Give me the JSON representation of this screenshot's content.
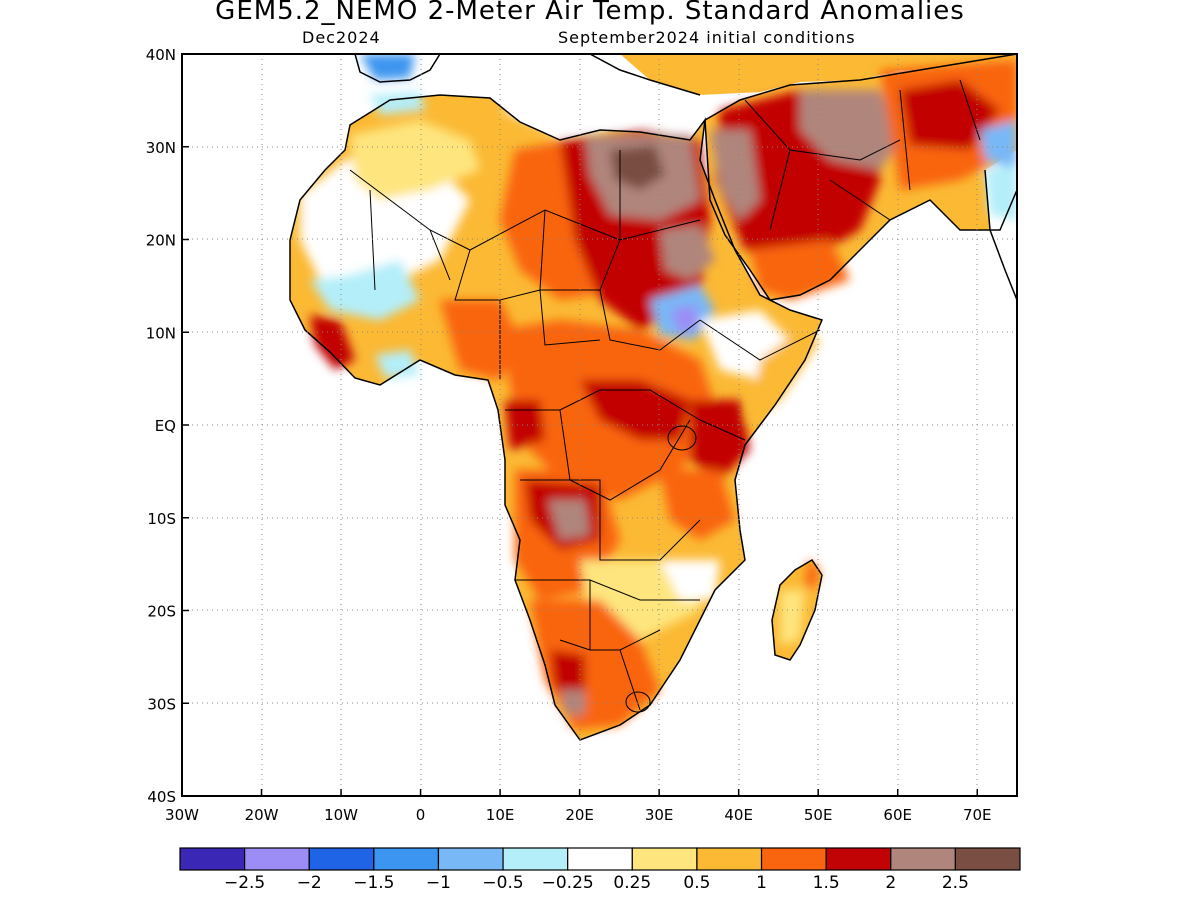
{
  "header": {
    "title": "GEM5.2_NEMO 2-Meter Air Temp. Standard Anomalies",
    "target_month": "Dec2024",
    "init_conditions": "September2024 initial conditions"
  },
  "map": {
    "lon_range": [
      -30,
      75
    ],
    "lat_range": [
      -40,
      40
    ],
    "y_tick_labels": [
      "40N",
      "30N",
      "20N",
      "10N",
      "EQ",
      "10S",
      "20S",
      "30S",
      "40S"
    ],
    "x_tick_labels": [
      "30W",
      "20W",
      "10W",
      "0",
      "10E",
      "20E",
      "30E",
      "40E",
      "50E",
      "60E",
      "70E"
    ],
    "gridlines": true
  },
  "colorbar": {
    "colors": [
      "#3a27b5",
      "#9b8df5",
      "#1f63e6",
      "#3c95f0",
      "#78b8f7",
      "#b3eef9",
      "#ffffff",
      "#fee57e",
      "#fbb934",
      "#f9650f",
      "#c20306",
      "#b0857b",
      "#7a4e42"
    ],
    "labels": [
      "-2.5",
      "-2",
      "-1.5",
      "-1",
      "-0.5",
      "-0.25",
      "0.25",
      "0.5",
      "1",
      "1.5",
      "2",
      "2.5"
    ]
  },
  "chart_data": {
    "type": "heatmap",
    "title": "GEM5.2_NEMO 2-Meter Air Temp. Standard Anomalies",
    "subtitle": "Dec2024 — September2024 initial conditions",
    "xlim": [
      -30,
      75
    ],
    "ylim": [
      -40,
      40
    ],
    "x_tick_labels": [
      "30W",
      "20W",
      "10W",
      "0",
      "10E",
      "20E",
      "30E",
      "40E",
      "50E",
      "60E",
      "70E"
    ],
    "y_tick_labels": [
      "40N",
      "30N",
      "20N",
      "10N",
      "EQ",
      "10S",
      "20S",
      "30S",
      "40S"
    ],
    "levels": [
      -2.5,
      -2,
      -1.5,
      -1,
      -0.5,
      -0.25,
      0.25,
      0.5,
      1,
      1.5,
      2,
      2.5
    ],
    "regions": [
      {
        "lon": [
          0,
          20
        ],
        "lat": [
          22,
          32
        ],
        "level": 0.5
      },
      {
        "lon": [
          8,
          24
        ],
        "lat": [
          -2,
          30
        ],
        "level": 1.5
      },
      {
        "lon": [
          19,
          35
        ],
        "lat": [
          10,
          30
        ],
        "level": 2
      },
      {
        "lon": [
          25,
          32
        ],
        "lat": [
          22,
          30
        ],
        "level": 2.5
      },
      {
        "lon": [
          18,
          25
        ],
        "lat": [
          -13,
          -8
        ],
        "level": 2
      },
      {
        "lon": [
          12,
          30
        ],
        "lat": [
          -5,
          10
        ],
        "level": 1.5
      },
      {
        "lon": [
          22,
          36
        ],
        "lat": [
          3,
          7
        ],
        "level": 2
      },
      {
        "lon": [
          30,
          36
        ],
        "lat": [
          10,
          14
        ],
        "level": -1.5
      },
      {
        "lon": [
          34,
          42
        ],
        "lat": [
          -12,
          0
        ],
        "level": 1.5
      },
      {
        "lon": [
          38,
          52
        ],
        "lat": [
          20,
          35
        ],
        "level": 2
      },
      {
        "lon": [
          45,
          55
        ],
        "lat": [
          26,
          32
        ],
        "level": 2
      },
      {
        "lon": [
          12,
          32
        ],
        "lat": [
          -30,
          -14
        ],
        "level": 1
      },
      {
        "lon": [
          17,
          22
        ],
        "lat": [
          -32,
          -25
        ],
        "level": 2
      },
      {
        "lon": [
          -17,
          -10
        ],
        "lat": [
          7,
          12
        ],
        "level": 1.5
      },
      {
        "lon": [
          -12,
          8
        ],
        "lat": [
          8,
          18
        ],
        "level": 0.25
      },
      {
        "lon": [
          -5,
          5
        ],
        "lat": [
          14,
          18
        ],
        "level": -0.5
      },
      {
        "lon": [
          -9,
          -4
        ],
        "lat": [
          35,
          38
        ],
        "level": -1
      },
      {
        "lon": [
          60,
          72
        ],
        "lat": [
          28,
          38
        ],
        "level": 1.5
      },
      {
        "lon": [
          47,
          50
        ],
        "lat": [
          -25,
          -13
        ],
        "level": 0.5
      }
    ]
  }
}
